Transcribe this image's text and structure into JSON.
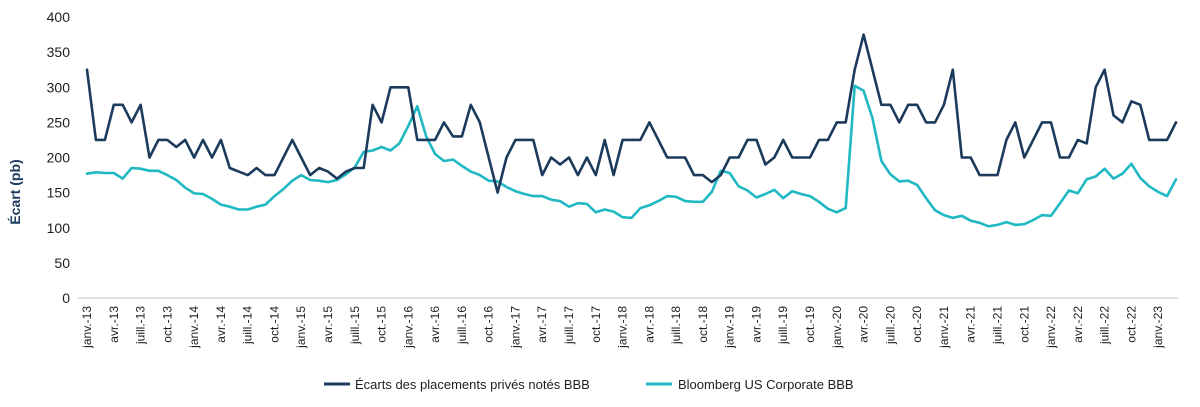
{
  "chart_data": {
    "type": "line",
    "title": "",
    "xlabel": "",
    "ylabel": "Écart (pb)",
    "ylim": [
      0,
      400
    ],
    "yticks": [
      0,
      50,
      100,
      150,
      200,
      250,
      300,
      350,
      400
    ],
    "grid": false,
    "legend_position": "bottom",
    "x_tick_labels": [
      "janv.-13",
      "avr.-13",
      "juill.-13",
      "oct.-13",
      "janv.-14",
      "avr.-14",
      "juill.-14",
      "oct.-14",
      "janv.-15",
      "avr.-15",
      "juill.-15",
      "oct.-15",
      "janv.-16",
      "avr.-16",
      "juill.-16",
      "oct.-16",
      "janv.-17",
      "avr.-17",
      "juill.-17",
      "oct.-17",
      "janv.-18",
      "avr.-18",
      "juill.-18",
      "oct.-18",
      "janv.-19",
      "avr.-19",
      "juill.-19",
      "oct.-19",
      "janv.-20",
      "avr.-20",
      "juill.-20",
      "oct.-20",
      "janv.-21",
      "avr.-21",
      "juill.-21",
      "oct.-21",
      "janv.-22",
      "avr.-22",
      "juill.-22",
      "oct.-22",
      "janv.-23"
    ],
    "series": [
      {
        "name": "Écarts des placements privés notés BBB",
        "color": "#1b3a5c",
        "values": [
          325,
          225,
          225,
          275,
          275,
          250,
          275,
          200,
          225,
          225,
          215,
          225,
          200,
          225,
          200,
          225,
          185,
          180,
          175,
          185,
          175,
          175,
          200,
          225,
          200,
          175,
          185,
          180,
          170,
          180,
          185,
          185,
          275,
          250,
          300,
          300,
          300,
          225,
          225,
          225,
          250,
          230,
          230,
          275,
          250,
          200,
          150,
          200,
          225,
          225,
          225,
          175,
          200,
          190,
          200,
          175,
          200,
          175,
          225,
          175,
          225,
          225,
          225,
          250,
          225,
          200,
          200,
          200,
          175,
          175,
          165,
          175,
          200,
          200,
          225,
          225,
          190,
          200,
          225,
          200,
          200,
          200,
          225,
          225,
          250,
          250,
          325,
          375,
          325,
          275,
          275,
          250,
          275,
          275,
          250,
          250,
          275,
          325,
          200,
          200,
          175,
          175,
          175,
          225,
          250,
          200,
          225,
          250,
          250,
          200,
          200,
          225,
          220,
          300,
          325,
          260,
          250,
          280,
          275,
          225,
          225,
          225,
          250
        ]
      },
      {
        "name": "Bloomberg US Corporate BBB",
        "color": "#1fb8c3",
        "values": [
          177,
          179,
          178,
          178,
          170,
          185,
          184,
          181,
          181,
          175,
          168,
          157,
          149,
          148,
          141,
          133,
          130,
          126,
          126,
          130,
          133,
          145,
          155,
          167,
          175,
          168,
          167,
          165,
          168,
          176,
          186,
          208,
          210,
          215,
          210,
          220,
          245,
          273,
          230,
          205,
          195,
          197,
          188,
          180,
          175,
          167,
          166,
          158,
          152,
          148,
          145,
          145,
          140,
          138,
          130,
          135,
          134,
          122,
          126,
          123,
          115,
          114,
          128,
          132,
          138,
          145,
          144,
          138,
          137,
          137,
          151,
          181,
          178,
          159,
          153,
          143,
          148,
          154,
          142,
          152,
          148,
          145,
          137,
          127,
          122,
          128,
          302,
          295,
          256,
          195,
          176,
          166,
          167,
          161,
          142,
          125,
          118,
          114,
          117,
          110,
          107,
          102,
          104,
          108,
          104,
          105,
          111,
          118,
          117,
          135,
          153,
          149,
          169,
          173,
          184,
          170,
          177,
          191,
          171,
          159,
          151,
          145,
          169
        ]
      }
    ]
  }
}
